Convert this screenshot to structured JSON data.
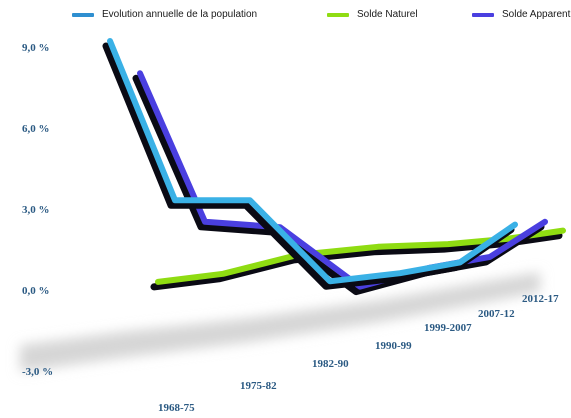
{
  "chart_data": {
    "type": "line",
    "categories": [
      "1968-75",
      "1975-82",
      "1982-90",
      "1990-99",
      "1999-2007",
      "2007-12",
      "2012-17"
    ],
    "y_ticks": [
      "9,0 %",
      "6,0 %",
      "3,0 %",
      "0,0 %",
      "-3,0 %"
    ],
    "y_tick_values": [
      9,
      6,
      3,
      0,
      -3
    ],
    "ylim": [
      -3,
      9
    ],
    "series": [
      {
        "name": "Evolution annuelle de la population",
        "color": "#3ab1e6",
        "values": [
          9.0,
          3.1,
          3.1,
          0.1,
          0.4,
          0.8,
          2.2
        ]
      },
      {
        "name": "Solde Naturel",
        "color": "#8fdc12",
        "values": [
          0.3,
          0.6,
          1.3,
          1.6,
          1.7,
          1.9,
          2.2
        ]
      },
      {
        "name": "Solde Apparent",
        "color": "#4a3fe0",
        "values": [
          8.1,
          2.6,
          2.4,
          0.2,
          0.9,
          1.3,
          2.6
        ]
      }
    ],
    "legend_position": "top",
    "grid": false
  }
}
